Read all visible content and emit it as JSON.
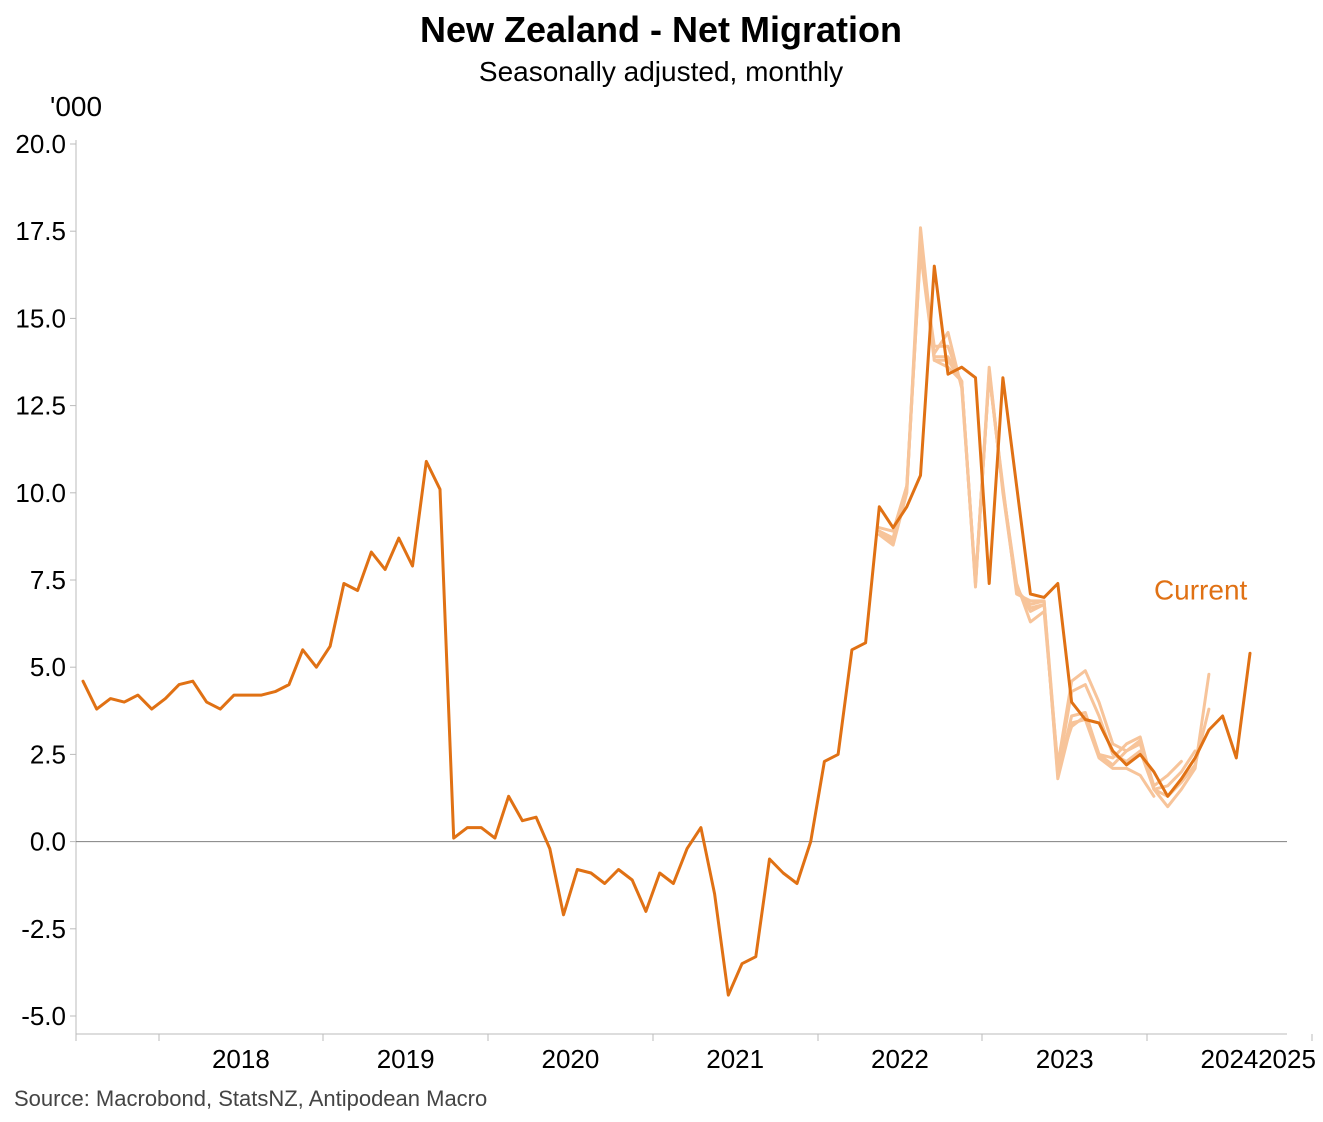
{
  "title": "New Zealand - Net Migration",
  "subtitle": "Seasonally adjusted, monthly",
  "unit_label": "'000",
  "source": "Source: Macrobond, StatsNZ, Antipodean Macro",
  "colors": {
    "current": "#E07114",
    "vintage": "#F7C49A",
    "zero_line": "#808080",
    "axis": "#BBBBBB",
    "annotation": "#E07114"
  },
  "chart_data": {
    "type": "line",
    "title": "New Zealand - Net Migration",
    "subtitle": "Seasonally adjusted, monthly",
    "ylabel": "'000",
    "xlabel": "",
    "ylim": [
      -5.0,
      20.0
    ],
    "y_ticks": [
      -5.0,
      -2.5,
      0.0,
      2.5,
      5.0,
      7.5,
      10.0,
      12.5,
      15.0,
      17.5,
      20.0
    ],
    "y_tick_labels": [
      "-5.0",
      "-2.5",
      "0.0",
      "2.5",
      "5.0",
      "7.5",
      "10.0",
      "12.5",
      "15.0",
      "17.5",
      "20.0"
    ],
    "x_range": [
      "2017-07",
      "2025-03"
    ],
    "year_labels": [
      "2018",
      "2019",
      "2020",
      "2021",
      "2022",
      "2023",
      "2024",
      "2025"
    ],
    "grid": false,
    "zero_line": true,
    "annotations": [
      {
        "text": "Current",
        "near": "2024-01",
        "y": 7.2
      }
    ],
    "series": [
      {
        "name": "Current",
        "role": "current",
        "start": "2017-07",
        "values": [
          4.6,
          3.8,
          4.1,
          4.0,
          4.2,
          3.8,
          4.1,
          4.5,
          4.6,
          4.0,
          3.8,
          4.2,
          4.2,
          4.2,
          4.3,
          4.5,
          5.5,
          5.0,
          5.6,
          7.4,
          7.2,
          8.3,
          7.8,
          8.7,
          7.9,
          10.9,
          10.1,
          0.1,
          0.4,
          0.4,
          0.1,
          1.3,
          0.6,
          0.7,
          -0.2,
          -2.1,
          -0.8,
          -0.9,
          -1.2,
          -0.8,
          -1.1,
          -2.0,
          -0.9,
          -1.2,
          -0.2,
          0.4,
          -1.5,
          -4.4,
          -3.5,
          -3.3,
          -0.5,
          -0.9,
          -1.2,
          0.0,
          2.3,
          2.5,
          5.5,
          5.7,
          9.6,
          9.0,
          9.6,
          10.5,
          16.5,
          13.4,
          13.6,
          13.3,
          7.4,
          13.3,
          10.2,
          7.1,
          7.0,
          7.4,
          4.0,
          3.5,
          3.4,
          2.6,
          2.2,
          2.5,
          2.0,
          1.3,
          1.8,
          2.4,
          3.2,
          3.6,
          2.4,
          5.4
        ]
      },
      {
        "name": "",
        "role": "vintage",
        "start": "2022-05",
        "values": [
          8.8,
          8.5,
          10.0,
          17.6,
          13.8,
          13.6,
          13.2,
          7.3,
          13.6,
          10.0,
          7.2,
          6.8,
          6.9,
          1.8,
          3.4,
          3.5,
          2.4,
          2.1,
          2.1,
          1.9,
          1.3
        ]
      },
      {
        "name": "",
        "role": "vintage",
        "start": "2022-05",
        "values": [
          9.0,
          8.9,
          10.2,
          17.2,
          14.0,
          14.6,
          13.0,
          7.5,
          13.4,
          10.1,
          7.4,
          6.3,
          6.6,
          2.2,
          4.6,
          4.9,
          4.0,
          2.8,
          2.6,
          2.9,
          1.6,
          1.9,
          2.3
        ]
      },
      {
        "name": "",
        "role": "vintage",
        "start": "2022-05",
        "values": [
          8.9,
          8.7,
          10.1,
          17.0,
          14.2,
          14.2,
          13.1,
          7.4,
          13.5,
          10.1,
          7.3,
          6.6,
          6.8,
          2.0,
          4.3,
          4.5,
          3.6,
          2.5,
          2.3,
          2.6,
          1.5,
          1.6,
          2.0,
          2.6
        ]
      },
      {
        "name": "",
        "role": "vintage",
        "start": "2022-05",
        "values": [
          8.9,
          8.7,
          10.2,
          16.9,
          13.8,
          13.8,
          13.2,
          7.4,
          13.4,
          10.2,
          7.1,
          6.9,
          6.9,
          2.1,
          3.3,
          3.6,
          2.5,
          2.4,
          2.8,
          3.0,
          1.5,
          1.0,
          1.5,
          2.1,
          4.8
        ]
      },
      {
        "name": "",
        "role": "vintage",
        "start": "2022-05",
        "values": [
          8.9,
          8.6,
          10.1,
          17.1,
          13.9,
          13.9,
          13.2,
          7.4,
          13.4,
          10.1,
          7.2,
          6.7,
          6.8,
          1.9,
          3.6,
          3.7,
          2.5,
          2.2,
          2.6,
          2.8,
          1.5,
          1.3,
          1.7,
          2.2,
          3.8
        ]
      }
    ]
  }
}
